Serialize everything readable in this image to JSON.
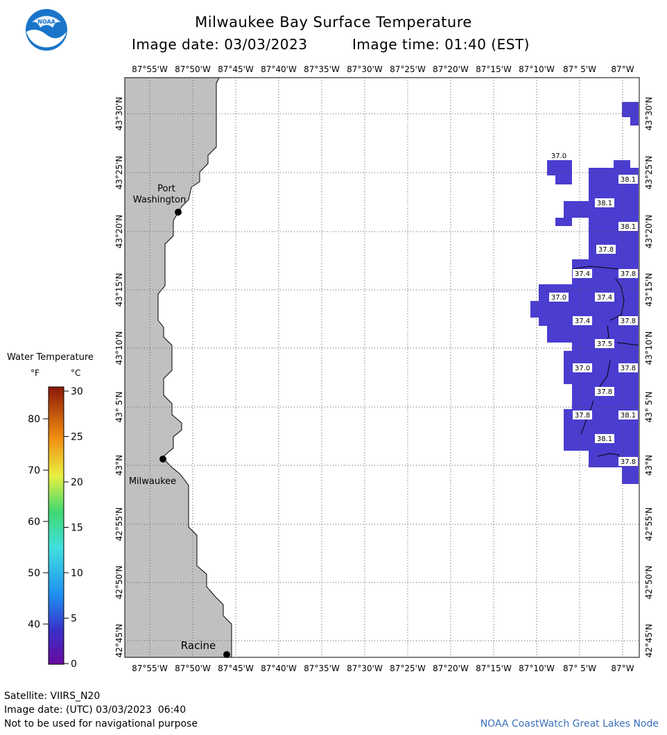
{
  "header": {
    "title": "Milwaukee Bay Surface Temperature",
    "image_date_label": "Image date: 03/03/2023",
    "image_time_label": "Image time: 01:40 (EST)",
    "logo_text": "NOAA"
  },
  "map": {
    "lon_labels": [
      "87°55'W",
      "87°50'W",
      "87°45'W",
      "87°40'W",
      "87°35'W",
      "87°30'W",
      "87°25'W",
      "87°20'W",
      "87°15'W",
      "87°10'W",
      "87° 5'W",
      "87°W"
    ],
    "lat_labels": [
      "43°30'N",
      "43°25'N",
      "43°20'N",
      "43°15'N",
      "43°10'N",
      "43° 5'N",
      "43°N",
      "42°55'N",
      "42°50'N",
      "42°45'N"
    ],
    "cities": [
      {
        "name_line1": "Port",
        "name_line2": "Washington"
      },
      {
        "name_line1": "Milwaukee",
        "name_line2": ""
      },
      {
        "name_line1": "Racine",
        "name_line2": ""
      }
    ],
    "temp_labels": [
      "37.0",
      "38.1",
      "38.1",
      "38.1",
      "37.8",
      "37.4",
      "37.8",
      "37.0",
      "37.4",
      "37.4",
      "37.8",
      "37.5",
      "37.0",
      "37.8",
      "37.8",
      "37.8",
      "38.1",
      "38.1",
      "37.8"
    ],
    "colors": {
      "land": "#c0c0c0",
      "water_temp": "#4a3dcf",
      "grid": "#555555"
    }
  },
  "legend": {
    "title": "Water Temperature",
    "unit_f": "°F",
    "unit_c": "°C",
    "f_ticks": [
      "80",
      "70",
      "60",
      "50",
      "40"
    ],
    "c_ticks": [
      "30",
      "25",
      "20",
      "15",
      "10",
      "5",
      "0"
    ]
  },
  "footer": {
    "satellite": "Satellite: VIIRS_N20",
    "utc_date": "Image date: (UTC) 03/03/2023  06:40",
    "disclaimer": "Not to be used for navigational purpose",
    "node": "NOAA CoastWatch Great Lakes Node"
  }
}
